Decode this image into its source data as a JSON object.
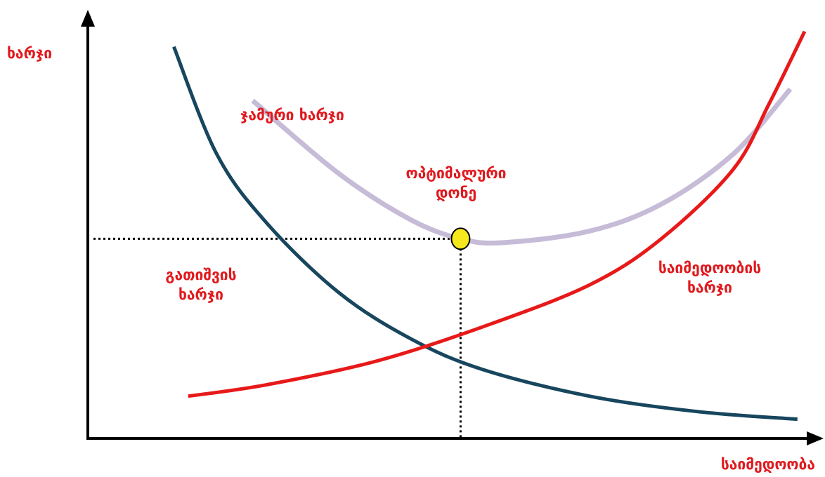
{
  "chart_data": {
    "type": "line",
    "xlabel": "საიმედოობა",
    "ylabel": "ხარჯი",
    "grid": false,
    "legend": "none",
    "axis_ticks": "none",
    "series": [
      {
        "name": "ჯამური ხარჯი",
        "color": "#c6bcd8",
        "points": [
          [
            0.23,
            0.88
          ],
          [
            0.35,
            0.69
          ],
          [
            0.45,
            0.57
          ],
          [
            0.52,
            0.52
          ],
          [
            0.58,
            0.51
          ],
          [
            0.7,
            0.54
          ],
          [
            0.8,
            0.61
          ],
          [
            0.9,
            0.74
          ],
          [
            0.98,
            0.91
          ]
        ]
      },
      {
        "name": "გათიშვის ხარჯი",
        "color": "#17465e",
        "points": [
          [
            0.12,
            1.02
          ],
          [
            0.18,
            0.74
          ],
          [
            0.25,
            0.56
          ],
          [
            0.35,
            0.38
          ],
          [
            0.45,
            0.26
          ],
          [
            0.55,
            0.18
          ],
          [
            0.7,
            0.11
          ],
          [
            0.85,
            0.07
          ],
          [
            0.99,
            0.05
          ]
        ]
      },
      {
        "name": "საიმედოობის ხარჯი",
        "color": "#e81919",
        "points": [
          [
            0.14,
            0.11
          ],
          [
            0.25,
            0.14
          ],
          [
            0.4,
            0.2
          ],
          [
            0.55,
            0.29
          ],
          [
            0.7,
            0.4
          ],
          [
            0.8,
            0.52
          ],
          [
            0.9,
            0.7
          ],
          [
            0.95,
            0.87
          ],
          [
            1.0,
            1.06
          ]
        ]
      }
    ],
    "optimum": {
      "x": 0.52,
      "y": 0.52,
      "color": "#f5e81c"
    },
    "xlim": [
      0,
      1
    ],
    "ylim": [
      0,
      1.12
    ]
  },
  "labels": {
    "total": "ჯამური ხარჯი",
    "optimal_line1": "ოპტიმალური",
    "optimal_line2": "დონე",
    "outage_line1": "გათიშვის",
    "outage_line2": "ხარჯი",
    "reliability_line1": "საიმედოობის",
    "reliability_line2": "ხარჯი"
  }
}
